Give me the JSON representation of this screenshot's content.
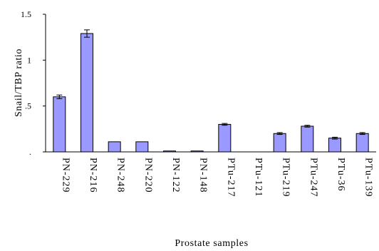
{
  "chart_data": {
    "type": "bar",
    "title": "",
    "xlabel": "Prostate samples",
    "ylabel": "Snail/TBP ratio",
    "ylim": [
      0,
      1.5
    ],
    "yticks": [
      {
        "value": 0,
        "label": "."
      },
      {
        "value": 0.5,
        "label": ".5"
      },
      {
        "value": 1,
        "label": "1"
      },
      {
        "value": 1.5,
        "label": "1.5"
      }
    ],
    "categories": [
      "PN-229",
      "PN-216",
      "PN-248",
      "PN-220",
      "PN-122",
      "PN-148",
      "PTu-217",
      "PTu-121",
      "PTu-219",
      "PTu-247",
      "PTu-36",
      "PTu-139"
    ],
    "values": [
      0.6,
      1.29,
      0.11,
      0.11,
      0.01,
      0.01,
      0.3,
      0.0,
      0.2,
      0.28,
      0.15,
      0.2
    ],
    "errors": [
      0.02,
      0.04,
      0.0,
      0.0,
      0.0,
      0.0,
      0.01,
      0.0,
      0.01,
      0.01,
      0.01,
      0.01
    ],
    "bar_color": "#9999ff",
    "bar_stroke": "#000000",
    "grid": false,
    "legend": "none"
  }
}
